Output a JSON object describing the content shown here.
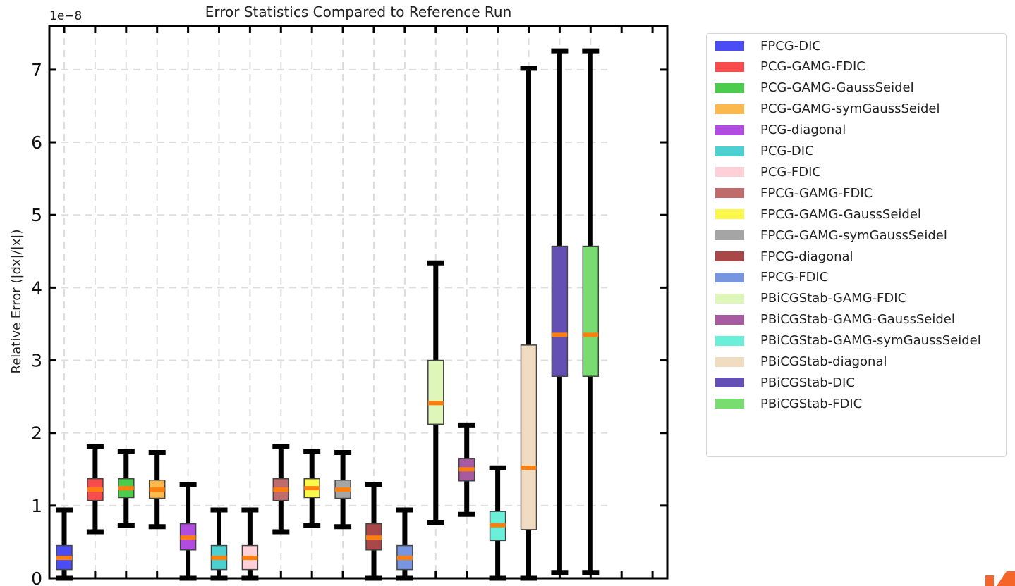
{
  "chart_data": {
    "type": "boxplot",
    "title": "Error Statistics Compared to Reference Run",
    "ylabel": "Relative Error (|dx|/|x|)",
    "xlabel": "",
    "y_scale_label": "1e−8",
    "ylim": [
      0,
      7.6
    ],
    "yticks": [
      0,
      1,
      2,
      3,
      4,
      5,
      6,
      7
    ],
    "grid": true,
    "legend_position": "outside-right",
    "series": [
      {
        "name": "FPCG-DIC",
        "color": "#4b4cf4",
        "whisker_low": 0.0,
        "q1": 0.12,
        "median": 0.28,
        "q3": 0.45,
        "whisker_high": 0.94
      },
      {
        "name": "PCG-GAMG-FDIC",
        "color": "#f84c4c",
        "whisker_low": 0.64,
        "q1": 1.07,
        "median": 1.22,
        "q3": 1.37,
        "whisker_high": 1.81
      },
      {
        "name": "PCG-GAMG-GaussSeidel",
        "color": "#4ccc4c",
        "whisker_low": 0.73,
        "q1": 1.11,
        "median": 1.24,
        "q3": 1.37,
        "whisker_high": 1.75
      },
      {
        "name": "PCG-GAMG-symGaussSeidel",
        "color": "#fbb84c",
        "whisker_low": 0.71,
        "q1": 1.1,
        "median": 1.22,
        "q3": 1.35,
        "whisker_high": 1.73
      },
      {
        "name": "PCG-diagonal",
        "color": "#b04ce0",
        "whisker_low": 0.0,
        "q1": 0.39,
        "median": 0.56,
        "q3": 0.75,
        "whisker_high": 1.29
      },
      {
        "name": "PCG-DIC",
        "color": "#4cd0d0",
        "whisker_low": 0.0,
        "q1": 0.12,
        "median": 0.28,
        "q3": 0.45,
        "whisker_high": 0.94
      },
      {
        "name": "PCG-FDIC",
        "color": "#ffd0d8",
        "whisker_low": 0.0,
        "q1": 0.12,
        "median": 0.28,
        "q3": 0.45,
        "whisker_high": 0.94
      },
      {
        "name": "FPCG-GAMG-FDIC",
        "color": "#bf6b6b",
        "whisker_low": 0.64,
        "q1": 1.07,
        "median": 1.22,
        "q3": 1.37,
        "whisker_high": 1.81
      },
      {
        "name": "FPCG-GAMG-GaussSeidel",
        "color": "#fbf84c",
        "whisker_low": 0.73,
        "q1": 1.11,
        "median": 1.24,
        "q3": 1.37,
        "whisker_high": 1.75
      },
      {
        "name": "FPCG-GAMG-symGaussSeidel",
        "color": "#a5a5a5",
        "whisker_low": 0.71,
        "q1": 1.1,
        "median": 1.22,
        "q3": 1.35,
        "whisker_high": 1.73
      },
      {
        "name": "FPCG-diagonal",
        "color": "#a84848",
        "whisker_low": 0.0,
        "q1": 0.39,
        "median": 0.56,
        "q3": 0.75,
        "whisker_high": 1.29
      },
      {
        "name": "FPCG-FDIC",
        "color": "#7895e0",
        "whisker_low": 0.0,
        "q1": 0.12,
        "median": 0.28,
        "q3": 0.45,
        "whisker_high": 0.94
      },
      {
        "name": "PBiCGStab-GAMG-FDIC",
        "color": "#def7b8",
        "whisker_low": 0.77,
        "q1": 2.12,
        "median": 2.41,
        "q3": 3.0,
        "whisker_high": 4.34
      },
      {
        "name": "PBiCGStab-GAMG-GaussSeidel",
        "color": "#a85aa0",
        "whisker_low": 0.88,
        "q1": 1.34,
        "median": 1.5,
        "q3": 1.65,
        "whisker_high": 2.11
      },
      {
        "name": "PBiCGStab-GAMG-symGaussSeidel",
        "color": "#6af0d8",
        "whisker_low": 0.0,
        "q1": 0.52,
        "median": 0.73,
        "q3": 0.92,
        "whisker_high": 1.52
      },
      {
        "name": "PBiCGStab-diagonal",
        "color": "#f0dcc0",
        "whisker_low": 0.0,
        "q1": 0.67,
        "median": 1.52,
        "q3": 3.21,
        "whisker_high": 7.02
      },
      {
        "name": "PBiCGStab-DIC",
        "color": "#6450b4",
        "whisker_low": 0.08,
        "q1": 2.78,
        "median": 3.35,
        "q3": 4.57,
        "whisker_high": 7.26
      },
      {
        "name": "PBiCGStab-FDIC",
        "color": "#78dc70",
        "whisker_low": 0.08,
        "q1": 2.78,
        "median": 3.35,
        "q3": 4.57,
        "whisker_high": 7.26
      }
    ],
    "median_color": "#ff7f0e",
    "whisker_color": "#000000"
  },
  "colors": {
    "logo_accent": "#f5652a"
  }
}
